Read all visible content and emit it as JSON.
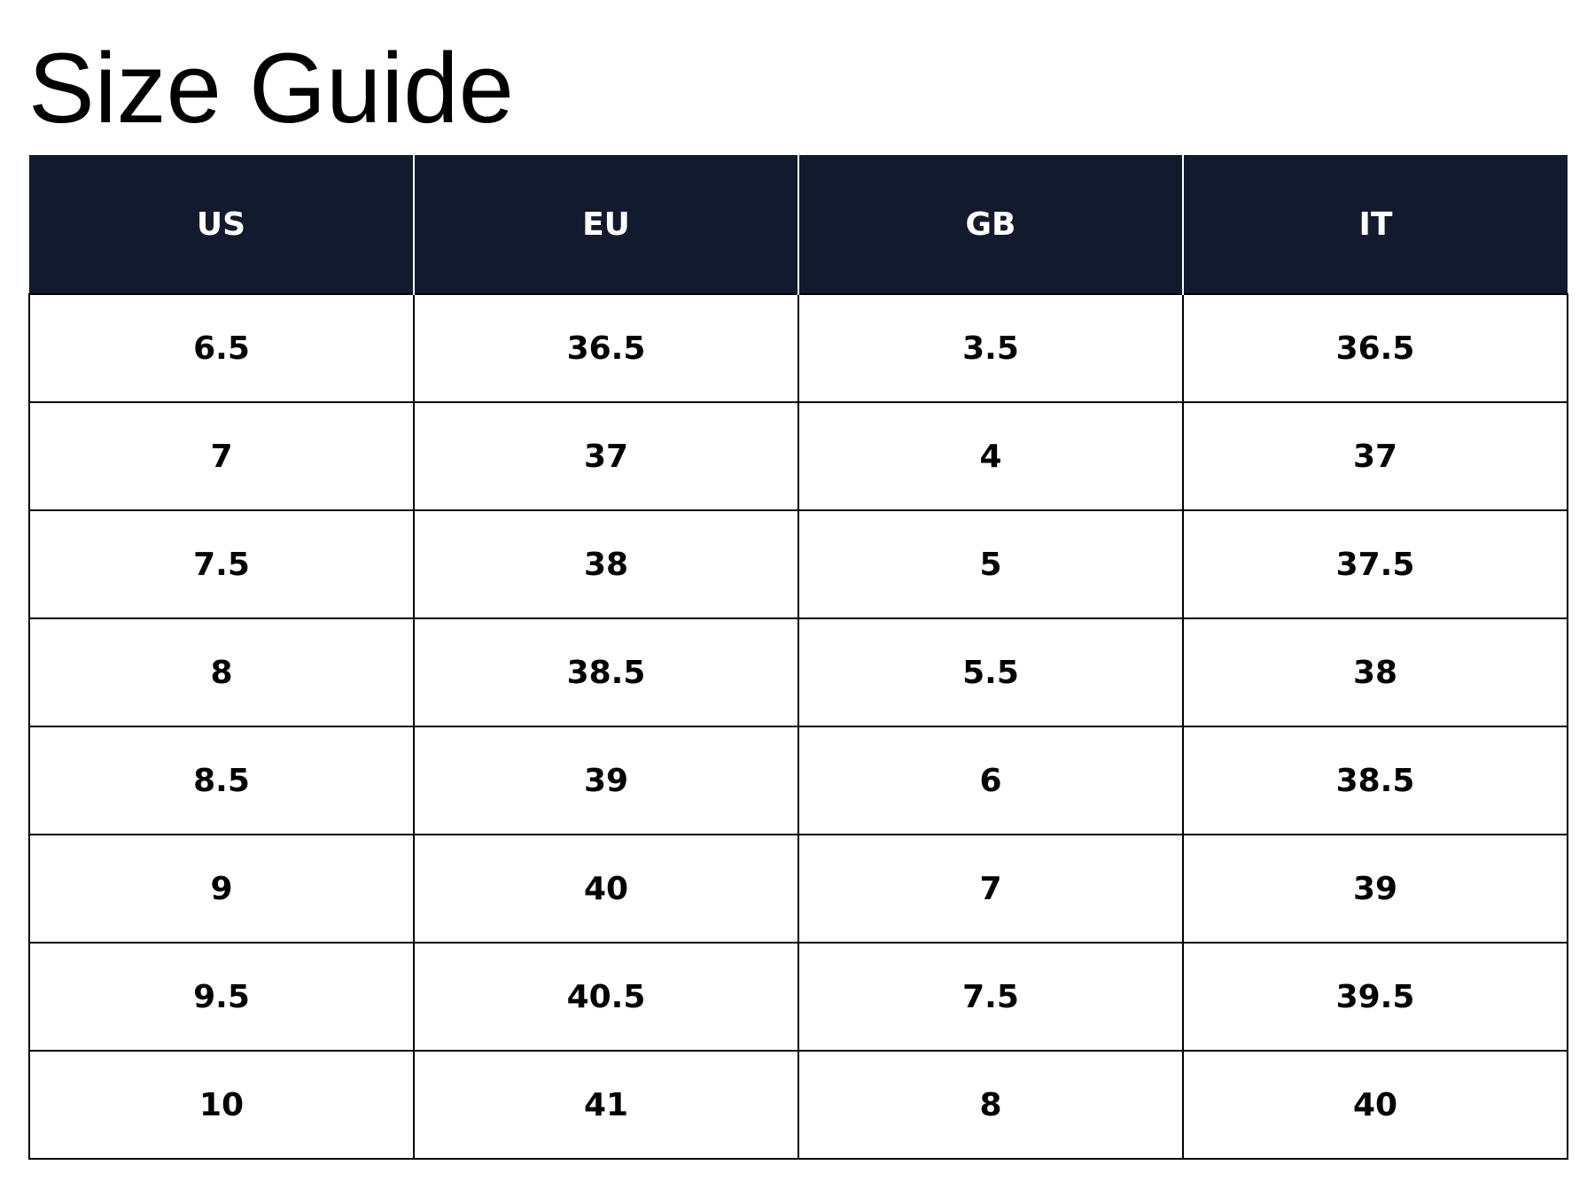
{
  "title": "Size Guide",
  "table": {
    "headers": [
      "US",
      "EU",
      "GB",
      "IT"
    ],
    "rows": [
      [
        "6.5",
        "36.5",
        "3.5",
        "36.5"
      ],
      [
        "7",
        "37",
        "4",
        "37"
      ],
      [
        "7.5",
        "38",
        "5",
        "37.5"
      ],
      [
        "8",
        "38.5",
        "5.5",
        "38"
      ],
      [
        "8.5",
        "39",
        "6",
        "38.5"
      ],
      [
        "9",
        "40",
        "7",
        "39"
      ],
      [
        "9.5",
        "40.5",
        "7.5",
        "39.5"
      ],
      [
        "10",
        "41",
        "8",
        "40"
      ]
    ]
  }
}
